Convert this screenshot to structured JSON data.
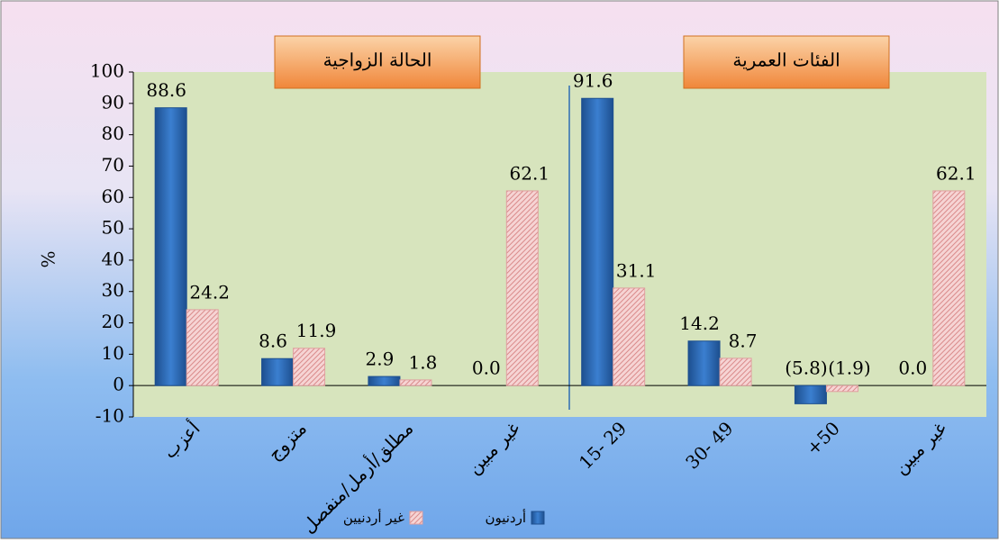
{
  "chart_data": {
    "type": "bar",
    "y_label": "%",
    "annotations": [
      "الحالة الزواجية",
      "الفئات العمرية"
    ],
    "categories": [
      "أعزب",
      "متزوج",
      "مطلق/أرمل/منفصل",
      "غير مبين",
      "15- 29",
      "30- 49",
      "+50",
      "غير مبين"
    ],
    "series": [
      {
        "name": "أردنيون",
        "color": "#2e6db4",
        "values": [
          88.6,
          8.6,
          2.9,
          0,
          91.6,
          14.2,
          -5.8,
          0
        ],
        "value_labels": [
          "88.6",
          "8.6",
          "2.9",
          "0.0",
          "91.6",
          "14.2",
          "(5.8)",
          "0.0"
        ]
      },
      {
        "name": "غير أردنيين",
        "color": "#f2b8b8",
        "values": [
          24.2,
          11.9,
          1.8,
          62.1,
          31.1,
          8.7,
          -1.9,
          62.1
        ],
        "value_labels": [
          "24.2",
          "11.9",
          "1.8",
          "62.1",
          "31.1",
          "8.7",
          "(1.9)",
          "62.1"
        ]
      }
    ],
    "ylim": [
      -10,
      100
    ],
    "yticks": [
      -10,
      0,
      10,
      20,
      30,
      40,
      50,
      60,
      70,
      80,
      90,
      100
    ],
    "legend": "bottom"
  }
}
